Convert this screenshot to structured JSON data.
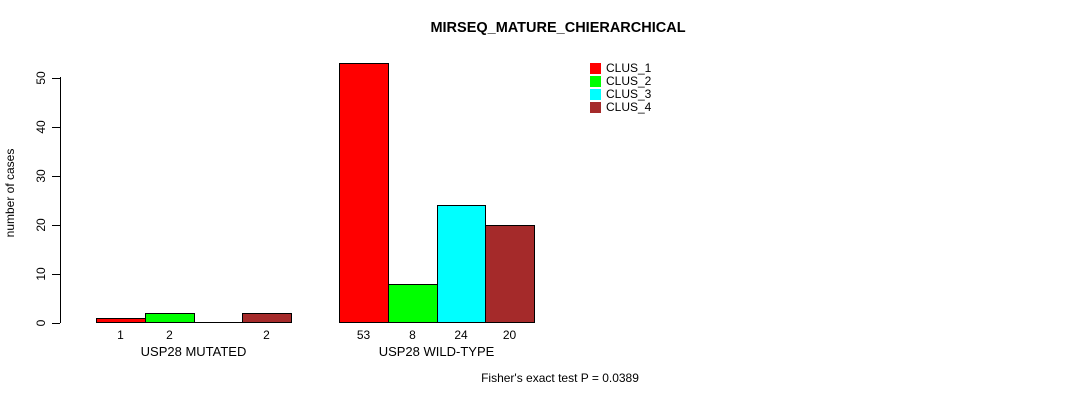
{
  "chart_data": {
    "type": "bar",
    "title": "MIRSEQ_MATURE_CHIERARCHICAL",
    "ylabel": "number of cases",
    "xlabel": "",
    "ylim": [
      0,
      53
    ],
    "yticks": [
      "0",
      "10",
      "20",
      "30",
      "40",
      "50"
    ],
    "categories": [
      "USP28 MUTATED",
      "USP28 WILD-TYPE"
    ],
    "series": [
      {
        "name": "CLUS_1",
        "color": "#ff0000",
        "values": [
          1,
          53
        ]
      },
      {
        "name": "CLUS_2",
        "color": "#00ff00",
        "values": [
          2,
          8
        ]
      },
      {
        "name": "CLUS_3",
        "color": "#00ffff",
        "values": [
          0,
          24
        ]
      },
      {
        "name": "CLUS_4",
        "color": "#a52a2a",
        "values": [
          2,
          20
        ]
      }
    ],
    "bar_value_labels": [
      [
        "1",
        "2",
        "",
        "2"
      ],
      [
        "53",
        "8",
        "24",
        "20"
      ]
    ],
    "legend": {
      "position": "top-right",
      "entries": [
        "CLUS_1",
        "CLUS_2",
        "CLUS_3",
        "CLUS_4"
      ]
    },
    "grid": false,
    "annotation": "Fisher's exact test P = 0.0389"
  },
  "colors": {
    "axis": "#000000",
    "text": "#000000",
    "background": "#ffffff"
  }
}
